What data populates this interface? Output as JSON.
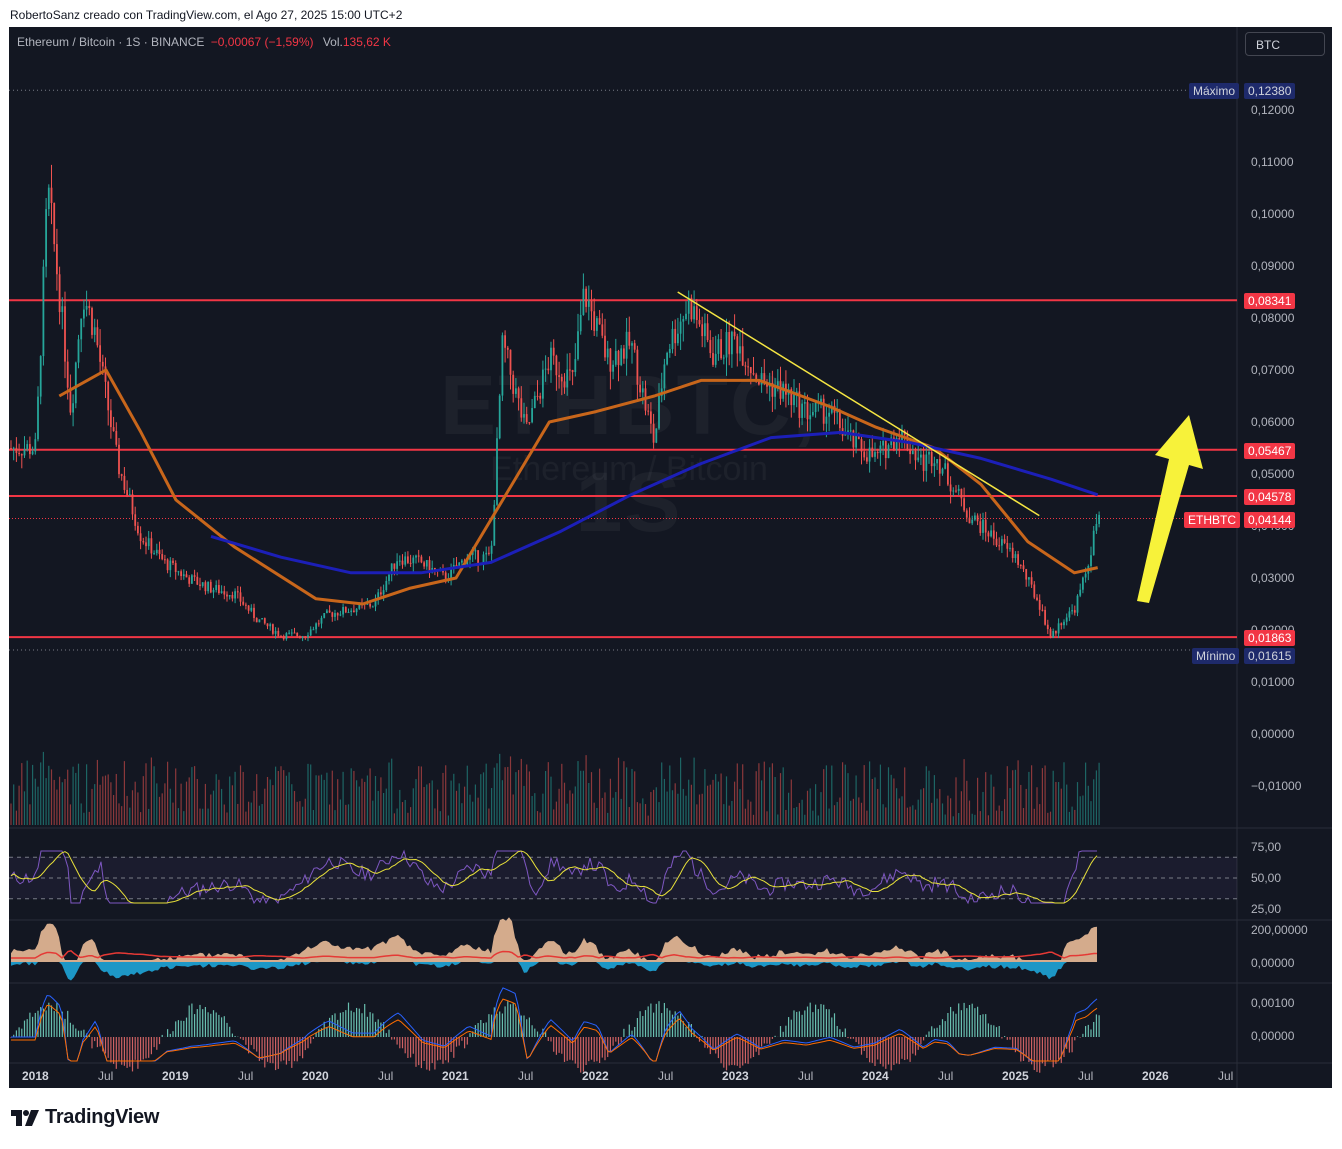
{
  "caption": "RobertoSanz creado con TradingView.com, el Ago 27, 2025 15:00 UTC+2",
  "legend": {
    "symbol": "Ethereum / Bitcoin · 1S · BINANCE",
    "change": "−0,00067 (−1,59%)",
    "volume_label": "Vol.",
    "volume_value": "135,62 K"
  },
  "symbol_button": "BTC",
  "watermark": {
    "ticker": "ETHBTC, 1S",
    "name": "Ethereum / Bitcoin"
  },
  "price_axis": {
    "labels": [
      "0,12000",
      "0,11000",
      "0,10000",
      "0,09000",
      "0,08000",
      "0,07000",
      "0,06000",
      "0,05000",
      "0,04000",
      "0,03000",
      "0,02000",
      "0,01000",
      "0,00000",
      "−0,01000"
    ],
    "max_label": "Máximo",
    "max_value": "0,12380",
    "min_label": "Mínimo",
    "min_value": "0,01615",
    "levels": [
      "0,08341",
      "0,05467",
      "0,04578",
      "0,01863"
    ],
    "current_symbol": "ETHBTC",
    "current_value": "0,04144"
  },
  "rsi_axis": [
    "75,00",
    "50,00",
    "25,00"
  ],
  "osc1_axis": [
    "200,00000",
    "0,00000"
  ],
  "osc2_axis": [
    "0,00100",
    "0,00000"
  ],
  "time_axis": [
    "2018",
    "Jul",
    "2019",
    "Jul",
    "2020",
    "Jul",
    "2021",
    "Jul",
    "2022",
    "Jul",
    "2023",
    "Jul",
    "2024",
    "Jul",
    "2025",
    "Jul",
    "2026",
    "Jul"
  ],
  "brand": "TradingView",
  "colors": {
    "up": "#26a69a",
    "down": "#ef5350",
    "level": "#f23645",
    "ma_orange": "#c8661b",
    "ma_blue": "#1c1fb8",
    "trendline": "#f5e542",
    "arrow": "#f7f23a",
    "rsi": "#7e57c2",
    "rsi_signal": "#e8e13a"
  },
  "chart_data": {
    "type": "candlestick",
    "symbol": "ETHBTC",
    "interval": "1S",
    "exchange": "BINANCE",
    "x_range": [
      "2018-01",
      "2026-07"
    ],
    "ylim": [
      -0.013,
      0.127
    ],
    "all_time_high": 0.1238,
    "all_time_low": 0.01615,
    "last_price": 0.04144,
    "horizontal_levels": [
      0.08341,
      0.05467,
      0.04578,
      0.01863
    ],
    "price_path": [
      [
        "2018-01",
        0.055
      ],
      [
        "2018-02",
        0.105
      ],
      [
        "2018-03",
        0.085
      ],
      [
        "2018-04",
        0.062
      ],
      [
        "2018-05",
        0.085
      ],
      [
        "2018-06",
        0.078
      ],
      [
        "2018-07",
        0.065
      ],
      [
        "2018-08",
        0.052
      ],
      [
        "2018-10",
        0.038
      ],
      [
        "2018-12",
        0.033
      ],
      [
        "2019-02",
        0.03
      ],
      [
        "2019-04",
        0.028
      ],
      [
        "2019-06",
        0.027
      ],
      [
        "2019-08",
        0.022
      ],
      [
        "2019-10",
        0.019
      ],
      [
        "2019-12",
        0.019
      ],
      [
        "2020-02",
        0.023
      ],
      [
        "2020-04",
        0.024
      ],
      [
        "2020-06",
        0.025
      ],
      [
        "2020-08",
        0.034
      ],
      [
        "2020-10",
        0.033
      ],
      [
        "2020-12",
        0.03
      ],
      [
        "2021-02",
        0.034
      ],
      [
        "2021-04",
        0.034
      ],
      [
        "2021-05",
        0.075
      ],
      [
        "2021-07",
        0.058
      ],
      [
        "2021-09",
        0.072
      ],
      [
        "2021-11",
        0.068
      ],
      [
        "2021-12",
        0.085
      ],
      [
        "2022-02",
        0.072
      ],
      [
        "2022-04",
        0.075
      ],
      [
        "2022-06",
        0.056
      ],
      [
        "2022-07",
        0.074
      ],
      [
        "2022-09",
        0.083
      ],
      [
        "2022-11",
        0.073
      ],
      [
        "2023-01",
        0.076
      ],
      [
        "2023-03",
        0.068
      ],
      [
        "2023-05",
        0.066
      ],
      [
        "2023-07",
        0.062
      ],
      [
        "2023-09",
        0.062
      ],
      [
        "2023-11",
        0.056
      ],
      [
        "2024-01",
        0.053
      ],
      [
        "2024-03",
        0.058
      ],
      [
        "2024-05",
        0.052
      ],
      [
        "2024-06",
        0.054
      ],
      [
        "2024-07",
        0.05
      ],
      [
        "2024-09",
        0.042
      ],
      [
        "2024-11",
        0.038
      ],
      [
        "2025-01",
        0.034
      ],
      [
        "2025-03",
        0.025
      ],
      [
        "2025-04",
        0.0185
      ],
      [
        "2025-05",
        0.022
      ],
      [
        "2025-06",
        0.024
      ],
      [
        "2025-07",
        0.031
      ],
      [
        "2025-08",
        0.0415
      ]
    ],
    "ma_orange": [
      [
        "2018-03",
        0.065
      ],
      [
        "2018-07",
        0.07
      ],
      [
        "2018-10",
        0.058
      ],
      [
        "2019-01",
        0.045
      ],
      [
        "2019-06",
        0.036
      ],
      [
        "2020-01",
        0.026
      ],
      [
        "2020-05",
        0.025
      ],
      [
        "2020-09",
        0.028
      ],
      [
        "2021-01",
        0.03
      ],
      [
        "2021-05",
        0.045
      ],
      [
        "2021-09",
        0.06
      ],
      [
        "2022-01",
        0.062
      ],
      [
        "2022-06",
        0.065
      ],
      [
        "2022-10",
        0.068
      ],
      [
        "2023-03",
        0.068
      ],
      [
        "2023-09",
        0.063
      ],
      [
        "2024-01",
        0.059
      ],
      [
        "2024-06",
        0.055
      ],
      [
        "2024-10",
        0.048
      ],
      [
        "2025-02",
        0.037
      ],
      [
        "2025-06",
        0.031
      ],
      [
        "2025-08",
        0.032
      ]
    ],
    "ma_blue": [
      [
        "2019-04",
        0.038
      ],
      [
        "2019-10",
        0.034
      ],
      [
        "2020-04",
        0.031
      ],
      [
        "2020-10",
        0.031
      ],
      [
        "2021-04",
        0.033
      ],
      [
        "2021-10",
        0.039
      ],
      [
        "2022-04",
        0.046
      ],
      [
        "2022-10",
        0.052
      ],
      [
        "2023-04",
        0.057
      ],
      [
        "2023-10",
        0.058
      ],
      [
        "2024-04",
        0.056
      ],
      [
        "2024-10",
        0.053
      ],
      [
        "2025-04",
        0.049
      ],
      [
        "2025-08",
        0.046
      ]
    ],
    "trendline": [
      [
        "2022-08",
        0.085
      ],
      [
        "2025-03",
        0.042
      ]
    ],
    "rsi_ylim": [
      0,
      100
    ],
    "rsi_levels": [
      70,
      50,
      30
    ],
    "rsi_last": 73
  }
}
